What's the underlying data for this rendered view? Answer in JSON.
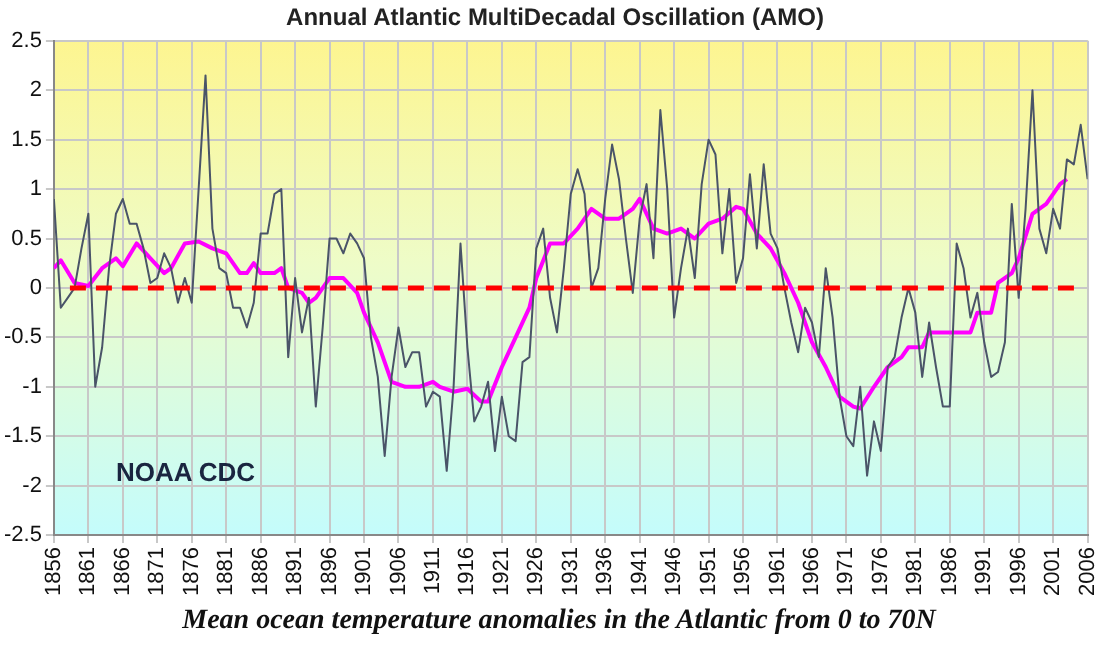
{
  "chart_data": {
    "type": "line",
    "title": "Annual Atlantic MultiDecadal Oscillation (AMO)",
    "annotations": [
      "NOAA CDC",
      "Mean ocean temperature anomalies in the Atlantic from 0 to 70N"
    ],
    "xlim": [
      1856,
      2006
    ],
    "xticks": [
      1856,
      1861,
      1866,
      1871,
      1876,
      1881,
      1886,
      1891,
      1896,
      1901,
      1906,
      1911,
      1916,
      1921,
      1926,
      1931,
      1936,
      1941,
      1946,
      1951,
      1956,
      1961,
      1966,
      1971,
      1976,
      1981,
      1986,
      1991,
      1996,
      2001,
      2006
    ],
    "ylim": [
      -2.5,
      2.5
    ],
    "yticks": [
      -2.5,
      -2,
      -1.5,
      -1,
      -0.5,
      0,
      0.5,
      1,
      1.5,
      2,
      2.5
    ],
    "grid": true,
    "legend": false,
    "marker": "none",
    "line_style": "solid",
    "ref_lines": [
      {
        "axis": "y",
        "value": 0,
        "color": "#ff0000",
        "line_style": "dashed"
      }
    ],
    "series": [
      {
        "color": "#4a5468",
        "x": [
          1856,
          1857,
          1858,
          1859,
          1860,
          1861,
          1862,
          1863,
          1864,
          1865,
          1866,
          1867,
          1868,
          1869,
          1870,
          1871,
          1872,
          1873,
          1874,
          1875,
          1876,
          1877,
          1878,
          1879,
          1880,
          1881,
          1882,
          1883,
          1884,
          1885,
          1886,
          1887,
          1888,
          1889,
          1890,
          1891,
          1892,
          1893,
          1894,
          1895,
          1896,
          1897,
          1898,
          1899,
          1900,
          1901,
          1902,
          1903,
          1904,
          1905,
          1906,
          1907,
          1908,
          1909,
          1910,
          1911,
          1912,
          1913,
          1914,
          1915,
          1916,
          1917,
          1918,
          1919,
          1920,
          1921,
          1922,
          1923,
          1924,
          1925,
          1926,
          1927,
          1928,
          1929,
          1930,
          1931,
          1932,
          1933,
          1934,
          1935,
          1936,
          1937,
          1938,
          1939,
          1940,
          1941,
          1942,
          1943,
          1944,
          1945,
          1946,
          1947,
          1948,
          1949,
          1950,
          1951,
          1952,
          1953,
          1954,
          1955,
          1956,
          1957,
          1958,
          1959,
          1960,
          1961,
          1962,
          1963,
          1964,
          1965,
          1966,
          1967,
          1968,
          1969,
          1970,
          1971,
          1972,
          1973,
          1974,
          1975,
          1976,
          1977,
          1978,
          1979,
          1980,
          1981,
          1982,
          1983,
          1984,
          1985,
          1986,
          1987,
          1988,
          1989,
          1990,
          1991,
          1992,
          1993,
          1994,
          1995,
          1996,
          1997,
          1998,
          1999,
          2000,
          2001,
          2002,
          2003,
          2004,
          2005,
          2006
        ],
        "values": [
          0.9,
          -0.2,
          -0.1,
          0.0,
          0.4,
          0.75,
          -1.0,
          -0.6,
          0.2,
          0.75,
          0.9,
          0.65,
          0.65,
          0.4,
          0.05,
          0.1,
          0.35,
          0.2,
          -0.15,
          0.1,
          -0.15,
          1.0,
          2.15,
          0.6,
          0.2,
          0.15,
          -0.2,
          -0.2,
          -0.4,
          -0.15,
          0.55,
          0.55,
          0.95,
          1.0,
          -0.7,
          0.1,
          -0.45,
          -0.1,
          -1.2,
          -0.4,
          0.5,
          0.5,
          0.35,
          0.55,
          0.45,
          0.3,
          -0.5,
          -0.9,
          -1.7,
          -0.9,
          -0.4,
          -0.8,
          -0.65,
          -0.65,
          -1.2,
          -1.05,
          -1.1,
          -1.85,
          -1.0,
          0.45,
          -0.6,
          -1.35,
          -1.2,
          -0.95,
          -1.65,
          -1.1,
          -1.5,
          -1.55,
          -0.75,
          -0.7,
          0.4,
          0.6,
          -0.1,
          -0.45,
          0.2,
          0.95,
          1.2,
          0.95,
          0.0,
          0.2,
          0.9,
          1.45,
          1.1,
          0.5,
          -0.05,
          0.7,
          1.05,
          0.3,
          1.8,
          1.0,
          -0.3,
          0.2,
          0.6,
          0.1,
          1.05,
          1.5,
          1.35,
          0.35,
          1.0,
          0.05,
          0.3,
          1.15,
          0.4,
          1.25,
          0.55,
          0.4,
          0.0,
          -0.35,
          -0.65,
          -0.2,
          -0.35,
          -0.7,
          0.2,
          -0.3,
          -1.1,
          -1.5,
          -1.6,
          -1.0,
          -1.9,
          -1.35,
          -1.65,
          -0.8,
          -0.7,
          -0.3,
          0.0,
          -0.25,
          -0.9,
          -0.35,
          -0.8,
          -1.2,
          -1.2,
          0.45,
          0.2,
          -0.3,
          -0.05,
          -0.55,
          -0.9,
          -0.85,
          -0.55,
          0.85,
          -0.1,
          0.8,
          2.0,
          0.6,
          0.35,
          0.8,
          0.6,
          1.3,
          1.25,
          1.65,
          1.1
        ]
      },
      {
        "color": "#ff00ff",
        "x": [
          1856,
          1857,
          1859,
          1861,
          1863,
          1865,
          1866,
          1868,
          1870,
          1872,
          1873,
          1875,
          1877,
          1879,
          1881,
          1883,
          1884,
          1885,
          1886,
          1888,
          1889,
          1890,
          1892,
          1893,
          1894,
          1896,
          1898,
          1900,
          1901,
          1903,
          1905,
          1907,
          1909,
          1911,
          1912,
          1914,
          1916,
          1918,
          1919,
          1921,
          1923,
          1925,
          1926,
          1928,
          1930,
          1932,
          1934,
          1936,
          1938,
          1940,
          1941,
          1943,
          1945,
          1947,
          1949,
          1951,
          1953,
          1955,
          1956,
          1958,
          1960,
          1962,
          1964,
          1966,
          1968,
          1970,
          1972,
          1973,
          1975,
          1977,
          1979,
          1980,
          1982,
          1983,
          1985,
          1987,
          1989,
          1990,
          1992,
          1993,
          1995,
          1996,
          1998,
          2000,
          2002,
          2003
        ],
        "values": [
          0.2,
          0.28,
          0.05,
          0.02,
          0.2,
          0.3,
          0.22,
          0.45,
          0.3,
          0.15,
          0.2,
          0.45,
          0.47,
          0.4,
          0.35,
          0.15,
          0.15,
          0.25,
          0.15,
          0.15,
          0.2,
          0.0,
          -0.05,
          -0.15,
          -0.1,
          0.1,
          0.1,
          -0.05,
          -0.25,
          -0.55,
          -0.95,
          -1.0,
          -1.0,
          -0.95,
          -1.0,
          -1.05,
          -1.02,
          -1.15,
          -1.15,
          -0.8,
          -0.5,
          -0.2,
          0.1,
          0.45,
          0.45,
          0.6,
          0.8,
          0.7,
          0.7,
          0.8,
          0.9,
          0.6,
          0.55,
          0.6,
          0.5,
          0.65,
          0.7,
          0.82,
          0.8,
          0.55,
          0.4,
          0.15,
          -0.15,
          -0.55,
          -0.8,
          -1.1,
          -1.2,
          -1.22,
          -1.0,
          -0.8,
          -0.7,
          -0.6,
          -0.6,
          -0.45,
          -0.45,
          -0.45,
          -0.45,
          -0.25,
          -0.25,
          0.05,
          0.15,
          0.3,
          0.75,
          0.85,
          1.05,
          1.1
        ]
      }
    ]
  }
}
